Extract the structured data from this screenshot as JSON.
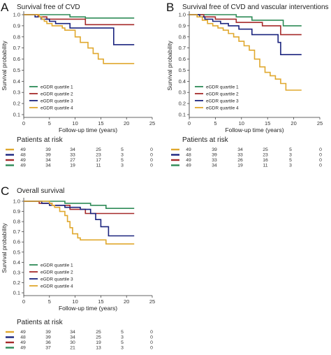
{
  "colors": {
    "quartile1": "#2e8b57",
    "quartile2": "#a52a2a",
    "quartile3": "#1a237e",
    "quartile4": "#e0a82e",
    "axis": "#333333"
  },
  "chart_data": [
    {
      "type": "line",
      "panel_letter": "A",
      "title": "Survival free of CVD",
      "xlabel": "Follow-up time (years)",
      "ylabel": "Survival probability",
      "xlim": [
        0,
        25
      ],
      "ylim": [
        0.1,
        1.0
      ],
      "xticks": [
        0,
        5,
        10,
        15,
        20,
        25
      ],
      "yticks": [
        0.1,
        0.2,
        0.3,
        0.4,
        0.5,
        0.6,
        0.7,
        0.8,
        0.9,
        1.0
      ],
      "legend_placement": "bottom-left",
      "series": [
        {
          "name": "eGDR quartile 1",
          "color": "#2e8b57",
          "x": [
            0,
            3.8,
            9,
            12,
            21.5
          ],
          "y": [
            1.0,
            1.0,
            0.98,
            0.97,
            0.97
          ]
        },
        {
          "name": "eGDR quartile 2",
          "color": "#a52a2a",
          "x": [
            0,
            2.8,
            4.5,
            12,
            21.5
          ],
          "y": [
            1.0,
            0.98,
            0.96,
            0.91,
            0.91
          ]
        },
        {
          "name": "eGDR quartile 3",
          "color": "#1a237e",
          "x": [
            0,
            2.2,
            3.4,
            5,
            6.2,
            9,
            17.2,
            17.5,
            21.5
          ],
          "y": [
            1.0,
            0.98,
            0.96,
            0.94,
            0.92,
            0.88,
            0.88,
            0.73,
            0.73
          ]
        },
        {
          "name": "eGDR quartile 4",
          "color": "#e0a82e",
          "x": [
            0,
            3,
            3.5,
            4,
            4.5,
            5.5,
            7.5,
            8,
            10,
            11,
            12.5,
            13.5,
            14.5,
            15.5,
            21.5
          ],
          "y": [
            1.0,
            0.98,
            0.96,
            0.94,
            0.92,
            0.9,
            0.88,
            0.86,
            0.8,
            0.75,
            0.7,
            0.65,
            0.6,
            0.56,
            0.56
          ]
        }
      ],
      "risk_table": {
        "title": "Patients at risk",
        "rows": [
          {
            "color": "#e0a82e",
            "counts": [
              "49",
              "39",
              "34",
              "25",
              "5",
              "0"
            ]
          },
          {
            "color": "#1a237e",
            "counts": [
              "48",
              "39",
              "33",
              "23",
              "3",
              "0"
            ]
          },
          {
            "color": "#a52a2a",
            "counts": [
              "49",
              "34",
              "27",
              "17",
              "5",
              "0"
            ]
          },
          {
            "color": "#2e8b57",
            "counts": [
              "49",
              "34",
              "19",
              "11",
              "3",
              "0"
            ]
          }
        ]
      }
    },
    {
      "type": "line",
      "panel_letter": "B",
      "title": "Survival free of CVD and vascular interventions",
      "xlabel": "Follow-up time (years)",
      "ylabel": "Survival probability",
      "xlim": [
        0,
        25
      ],
      "ylim": [
        0.1,
        1.0
      ],
      "xticks": [
        0,
        5,
        10,
        15,
        20,
        25
      ],
      "yticks": [
        0.1,
        0.2,
        0.3,
        0.4,
        0.5,
        0.6,
        0.7,
        0.8,
        0.9,
        1.0
      ],
      "legend_placement": "bottom-left",
      "series": [
        {
          "name": "eGDR quartile 1",
          "color": "#2e8b57",
          "x": [
            0,
            4,
            9,
            12,
            18,
            21.5
          ],
          "y": [
            1.0,
            1.0,
            0.98,
            0.95,
            0.9,
            0.9
          ]
        },
        {
          "name": "eGDR quartile 2",
          "color": "#a52a2a",
          "x": [
            0,
            2.8,
            5,
            9,
            14,
            17.5,
            21.5
          ],
          "y": [
            1.0,
            0.98,
            0.96,
            0.93,
            0.9,
            0.82,
            0.82
          ]
        },
        {
          "name": "eGDR quartile 3",
          "color": "#1a237e",
          "x": [
            0,
            2,
            3,
            4.5,
            6,
            7.5,
            9.5,
            12,
            17,
            17.5,
            21.5
          ],
          "y": [
            1.0,
            0.98,
            0.96,
            0.94,
            0.92,
            0.9,
            0.87,
            0.82,
            0.75,
            0.64,
            0.64
          ]
        },
        {
          "name": "eGDR quartile 4",
          "color": "#e0a82e",
          "x": [
            0,
            1.5,
            2.5,
            3.5,
            4.5,
            5.5,
            6.5,
            7.5,
            8.5,
            9.5,
            10.5,
            11.5,
            12.5,
            13.5,
            14.5,
            15.5,
            16.5,
            17.5,
            18.5,
            21.5
          ],
          "y": [
            1.0,
            0.98,
            0.95,
            0.92,
            0.9,
            0.88,
            0.86,
            0.83,
            0.8,
            0.76,
            0.72,
            0.68,
            0.6,
            0.53,
            0.48,
            0.45,
            0.42,
            0.38,
            0.32,
            0.32
          ]
        }
      ],
      "risk_table": {
        "title": "Patients at risk",
        "rows": [
          {
            "color": "#e0a82e",
            "counts": [
              "49",
              "39",
              "34",
              "25",
              "5",
              "0"
            ]
          },
          {
            "color": "#1a237e",
            "counts": [
              "48",
              "39",
              "33",
              "23",
              "3",
              "0"
            ]
          },
          {
            "color": "#a52a2a",
            "counts": [
              "49",
              "33",
              "26",
              "16",
              "5",
              "0"
            ]
          },
          {
            "color": "#2e8b57",
            "counts": [
              "49",
              "34",
              "19",
              "11",
              "3",
              "0"
            ]
          }
        ]
      }
    },
    {
      "type": "line",
      "panel_letter": "C",
      "title": "Overall survival",
      "xlabel": "Follow-up time (years)",
      "ylabel": "Survival probability",
      "xlim": [
        0,
        25
      ],
      "ylim": [
        0.1,
        1.0
      ],
      "xticks": [
        0,
        5,
        10,
        15,
        20,
        25
      ],
      "yticks": [
        0.1,
        0.2,
        0.3,
        0.4,
        0.5,
        0.6,
        0.7,
        0.8,
        0.9,
        1.0
      ],
      "legend_placement": "bottom-left",
      "series": [
        {
          "name": "eGDR quartile 1",
          "color": "#2e8b57",
          "x": [
            0,
            4,
            8,
            13,
            16,
            21.5
          ],
          "y": [
            1.0,
            1.0,
            0.98,
            0.96,
            0.93,
            0.93
          ]
        },
        {
          "name": "eGDR quartile 2",
          "color": "#a52a2a",
          "x": [
            0,
            3,
            5.5,
            9,
            12,
            21.5
          ],
          "y": [
            1.0,
            0.98,
            0.96,
            0.92,
            0.88,
            0.88
          ]
        },
        {
          "name": "eGDR quartile 3",
          "color": "#1a237e",
          "x": [
            0,
            3.5,
            5,
            8,
            11,
            13,
            14,
            15,
            16.5,
            21.5
          ],
          "y": [
            1.0,
            0.98,
            0.96,
            0.94,
            0.92,
            0.88,
            0.82,
            0.75,
            0.66,
            0.66
          ]
        },
        {
          "name": "eGDR quartile 4",
          "color": "#e0a82e",
          "x": [
            0,
            5,
            5.5,
            6,
            7,
            8,
            8.5,
            9,
            9.5,
            10.5,
            11,
            16,
            21.5
          ],
          "y": [
            1.0,
            0.98,
            0.96,
            0.94,
            0.9,
            0.86,
            0.8,
            0.74,
            0.68,
            0.64,
            0.62,
            0.58,
            0.58
          ]
        }
      ],
      "risk_table": {
        "title": "Patients at risk",
        "rows": [
          {
            "color": "#e0a82e",
            "counts": [
              "49",
              "39",
              "34",
              "25",
              "5",
              "0"
            ]
          },
          {
            "color": "#1a237e",
            "counts": [
              "48",
              "39",
              "34",
              "25",
              "3",
              "0"
            ]
          },
          {
            "color": "#a52a2a",
            "counts": [
              "49",
              "36",
              "30",
              "19",
              "5",
              "0"
            ]
          },
          {
            "color": "#2e8b57",
            "counts": [
              "49",
              "37",
              "21",
              "13",
              "3",
              "0"
            ]
          }
        ]
      }
    }
  ]
}
